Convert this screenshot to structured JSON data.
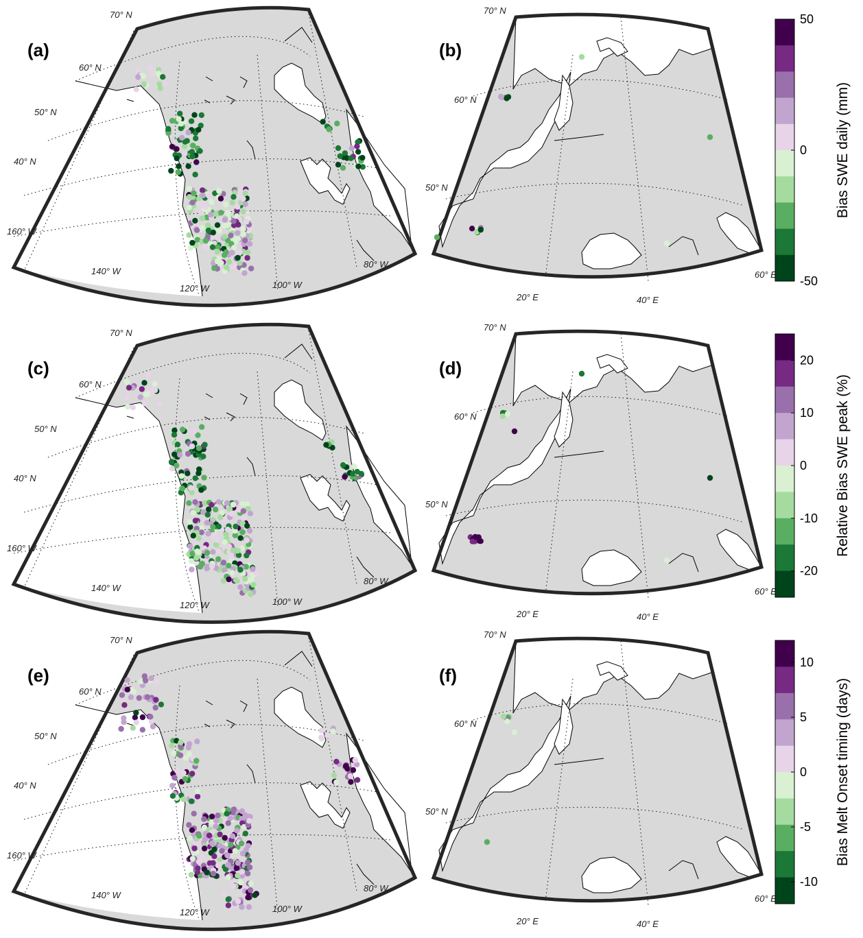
{
  "colors": {
    "scale": [
      "#00441b",
      "#1b7837",
      "#5aae61",
      "#a6dba0",
      "#d9f0d3",
      "#e7d4e8",
      "#c2a5cf",
      "#9970ab",
      "#762a83",
      "#40004b"
    ],
    "land": "#d9d9d9",
    "ocean": "#ffffff",
    "frame": "#262626"
  },
  "rows": [
    {
      "left_panel_label": "(a)",
      "right_panel_label": "(b)",
      "colorbar": {
        "title": "Bias SWE daily (mm)",
        "ticks": [
          "50",
          "0",
          "-50"
        ],
        "range": [
          -50,
          50
        ]
      }
    },
    {
      "left_panel_label": "(c)",
      "right_panel_label": "(d)",
      "colorbar": {
        "title": "Relative Bias SWE peak (%)",
        "ticks": [
          "20",
          "10",
          "0",
          "-10",
          "-20"
        ],
        "range": [
          -25,
          25
        ]
      }
    },
    {
      "left_panel_label": "(e)",
      "right_panel_label": "(f)",
      "colorbar": {
        "title": "Bias Melt Onset timing (days)",
        "ticks": [
          "10",
          "5",
          "0",
          "-5",
          "-10"
        ],
        "range": [
          -12,
          12
        ]
      }
    }
  ],
  "na_grid_labels": {
    "lat70": "70° N",
    "lat60": "60° N",
    "lat50": "50° N",
    "lat40": "40° N",
    "lon160": "160° W",
    "lon140": "140° W",
    "lon120": "120° W",
    "lon100": "100° W",
    "lon80": "80° W"
  },
  "eu_grid_labels": {
    "lat70": "70° N",
    "lat60": "60° N",
    "lat50": "50° N",
    "lon20": "20° E",
    "lon40": "40° E",
    "lon60": "60° E"
  }
}
